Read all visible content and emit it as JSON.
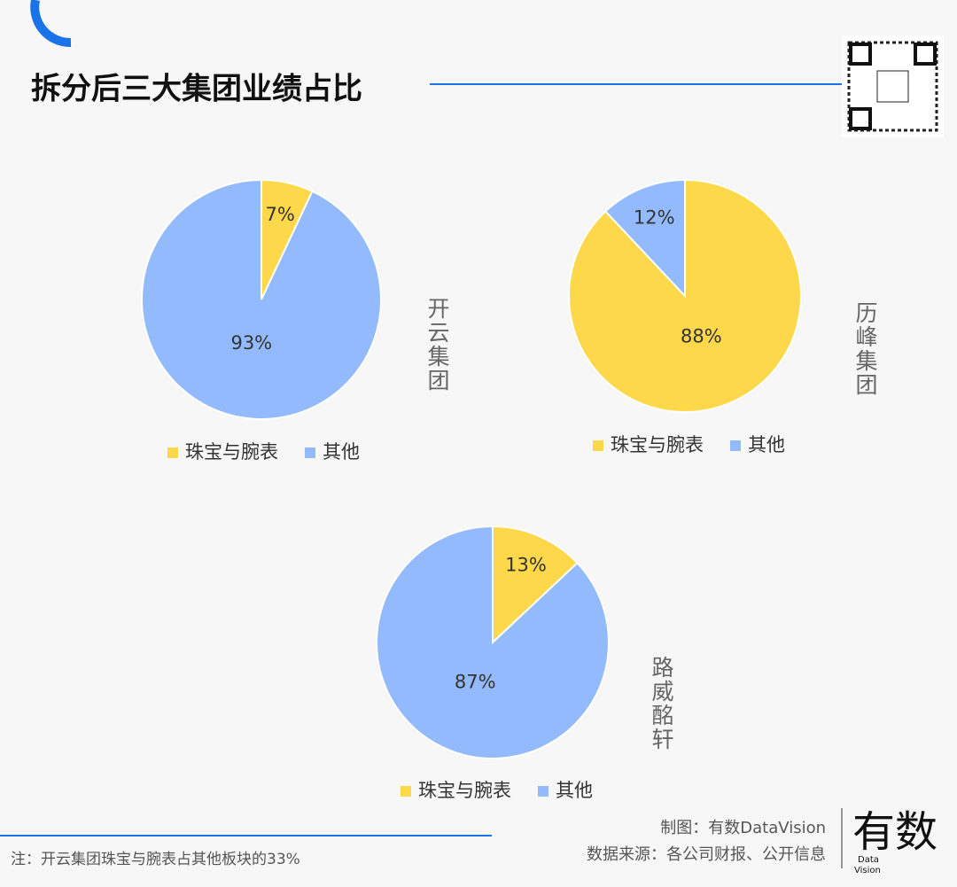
{
  "header": {
    "title": "拆分后三大集团业绩占比"
  },
  "chart_data": [
    {
      "type": "pie",
      "title": "开云集团",
      "categories": [
        "珠宝与腕表",
        "其他"
      ],
      "values": [
        7,
        93
      ],
      "value_labels": [
        "7%",
        "93%"
      ],
      "colors": [
        "#fdd84a",
        "#92bafd"
      ]
    },
    {
      "type": "pie",
      "title": "历峰集团",
      "categories": [
        "珠宝与腕表",
        "其他"
      ],
      "values": [
        88,
        12
      ],
      "value_labels": [
        "88%",
        "12%"
      ],
      "colors": [
        "#fdd84a",
        "#92bafd"
      ]
    },
    {
      "type": "pie",
      "title": "路威酩轩",
      "categories": [
        "珠宝与腕表",
        "其他"
      ],
      "values": [
        13,
        87
      ],
      "value_labels": [
        "13%",
        "87%"
      ],
      "colors": [
        "#fdd84a",
        "#92bafd"
      ]
    }
  ],
  "footer": {
    "note": "注：开云集团珠宝与腕表占其他板块的33%",
    "credit": "制图：有数DataVision",
    "source": "数据来源：各公司财报、公开信息"
  },
  "logo": {
    "name": "有数",
    "line1": "Data",
    "line2": "Vision"
  }
}
